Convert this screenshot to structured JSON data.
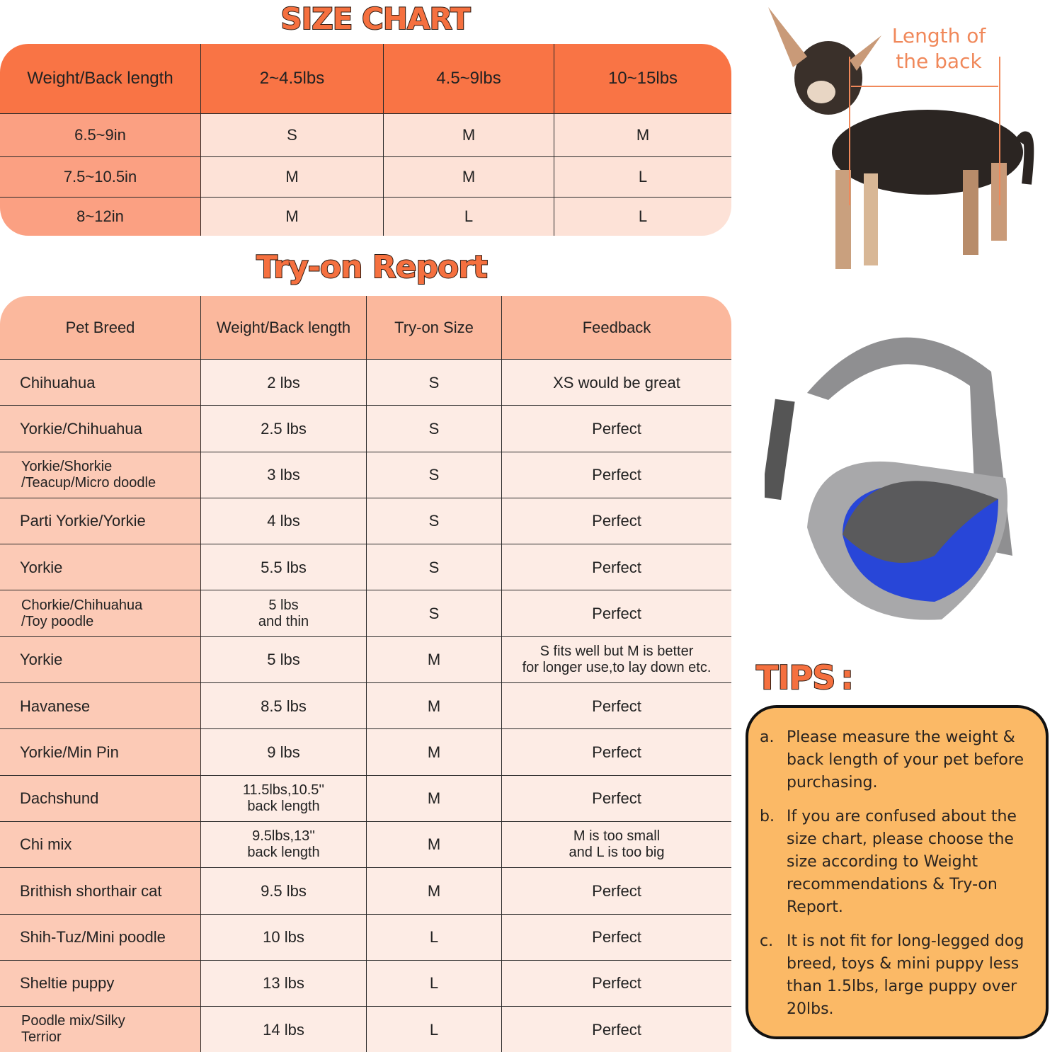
{
  "size_chart": {
    "title": "SIZE CHART",
    "headers": [
      "Weight/Back length",
      "2~4.5lbs",
      "4.5~9lbs",
      "10~15lbs"
    ],
    "rows": [
      [
        "6.5~9in",
        "S",
        "M",
        "M"
      ],
      [
        "7.5~10.5in",
        "M",
        "M",
        "L"
      ],
      [
        "8~12in",
        "M",
        "L",
        "L"
      ]
    ]
  },
  "tryon_report": {
    "title": "Try-on Report",
    "headers": [
      "Pet Breed",
      "Weight/Back length",
      "Try-on Size",
      "Feedback"
    ],
    "rows": [
      [
        "Chihuahua",
        "2 lbs",
        "S",
        "XS would be great"
      ],
      [
        "Yorkie/Chihuahua",
        "2.5 lbs",
        "S",
        "Perfect"
      ],
      [
        "Yorkie/Shorkie\n/Teacup/Micro doodle",
        "3 lbs",
        "S",
        "Perfect"
      ],
      [
        "Parti Yorkie/Yorkie",
        "4 lbs",
        "S",
        "Perfect"
      ],
      [
        "Yorkie",
        "5.5 lbs",
        "S",
        "Perfect"
      ],
      [
        "Chorkie/Chihuahua\n/Toy poodle",
        "5 lbs\nand thin",
        "S",
        "Perfect"
      ],
      [
        "Yorkie",
        "5 lbs",
        "M",
        "S fits well but M is better\nfor longer use,to lay down etc."
      ],
      [
        "Havanese",
        "8.5 lbs",
        "M",
        "Perfect"
      ],
      [
        "Yorkie/Min Pin",
        "9 lbs",
        "M",
        "Perfect"
      ],
      [
        "Dachshund",
        "11.5lbs,10.5''\nback length",
        "M",
        "Perfect"
      ],
      [
        "Chi mix",
        "9.5lbs,13''\nback length",
        "M",
        "M is too small\nand L is too big"
      ],
      [
        "Brithish shorthair cat",
        "9.5 lbs",
        "M",
        "Perfect"
      ],
      [
        "Shih-Tuz/Mini poodle",
        "10 lbs",
        "L",
        "Perfect"
      ],
      [
        "Sheltie puppy",
        "13 lbs",
        "L",
        "Perfect"
      ],
      [
        "Poodle mix/Silky\n Terrior",
        "14 lbs",
        "L",
        "Perfect"
      ]
    ]
  },
  "dog_image": {
    "label": "Length of\nthe back"
  },
  "tips": {
    "title": "TIPS :",
    "items": [
      {
        "key": "a.",
        "text": "Please measure the weight & back length of your pet before purchasing."
      },
      {
        "key": "b.",
        "text": "If you are confused about the size chart, please choose the size according to Weight recommendations & Try-on Report."
      },
      {
        "key": "c.",
        "text": "It is not fit for long-legged dog breed, toys & mini puppy less than 1.5lbs, large puppy over 20lbs."
      }
    ]
  },
  "colors": {
    "header_orange": "#f97445",
    "title_orange": "#f5703f",
    "tips_bg": "#fbb966",
    "bag_blue": "#2846d8"
  }
}
